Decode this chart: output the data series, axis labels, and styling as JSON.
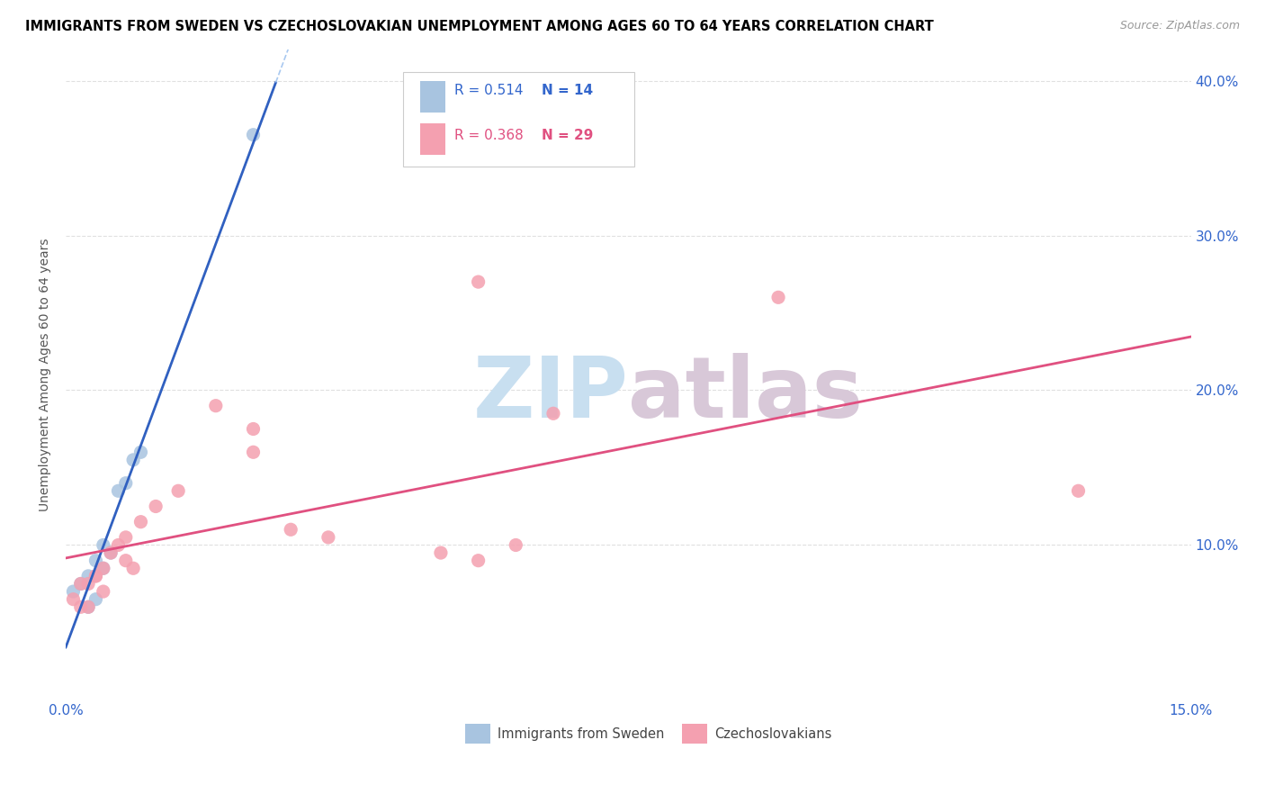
{
  "title": "IMMIGRANTS FROM SWEDEN VS CZECHOSLOVAKIAN UNEMPLOYMENT AMONG AGES 60 TO 64 YEARS CORRELATION CHART",
  "source": "Source: ZipAtlas.com",
  "ylabel": "Unemployment Among Ages 60 to 64 years",
  "xlim": [
    0.0,
    0.15
  ],
  "ylim": [
    0.0,
    0.42
  ],
  "legend_r_blue": "R = 0.514",
  "legend_n_blue": "N = 14",
  "legend_r_pink": "R = 0.368",
  "legend_n_pink": "N = 29",
  "sweden_x": [
    0.001,
    0.002,
    0.003,
    0.003,
    0.004,
    0.004,
    0.005,
    0.005,
    0.006,
    0.007,
    0.008,
    0.009,
    0.01,
    0.025
  ],
  "sweden_y": [
    0.07,
    0.075,
    0.06,
    0.08,
    0.065,
    0.09,
    0.085,
    0.1,
    0.095,
    0.135,
    0.14,
    0.155,
    0.16,
    0.365
  ],
  "czech_x": [
    0.001,
    0.002,
    0.002,
    0.003,
    0.003,
    0.004,
    0.004,
    0.005,
    0.005,
    0.006,
    0.007,
    0.008,
    0.008,
    0.009,
    0.01,
    0.012,
    0.015,
    0.02,
    0.025,
    0.025,
    0.03,
    0.035,
    0.05,
    0.055,
    0.055,
    0.06,
    0.065,
    0.095,
    0.135
  ],
  "czech_y": [
    0.065,
    0.06,
    0.075,
    0.06,
    0.075,
    0.08,
    0.08,
    0.07,
    0.085,
    0.095,
    0.1,
    0.09,
    0.105,
    0.085,
    0.115,
    0.125,
    0.135,
    0.19,
    0.16,
    0.175,
    0.11,
    0.105,
    0.095,
    0.27,
    0.09,
    0.1,
    0.185,
    0.26,
    0.135
  ],
  "blue_color": "#a8c4e0",
  "pink_color": "#f4a0b0",
  "blue_line_color": "#3060c0",
  "pink_line_color": "#e05080",
  "blue_dash_color": "#a8c8f0",
  "watermark_zip": "ZIP",
  "watermark_atlas": "atlas",
  "watermark_color_zip": "#c8dff0",
  "watermark_color_atlas": "#d8c8d8",
  "grid_color": "#e0e0e0"
}
